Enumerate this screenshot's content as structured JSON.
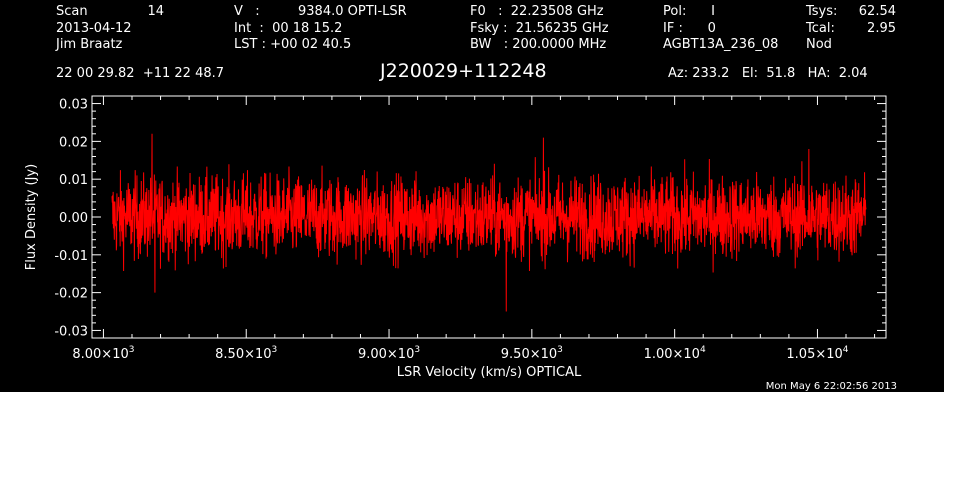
{
  "header": {
    "col1": [
      "Scan",
      "2013-04-12",
      "Jim Braatz"
    ],
    "scan_number": "14",
    "col2": [
      "V   :",
      "Int  :  00 18 15.2",
      "LST : +00 02 40.5"
    ],
    "velocity_value": "9384.0 OPTI-LSR",
    "col3": [
      "F0   :  22.23508 GHz",
      "Fsky :  21.56235 GHz",
      "BW   : 200.0000 MHz"
    ],
    "col4": [
      "Pol:      I",
      "IF :      0",
      "AGBT13A_236_08"
    ],
    "col5_labels": [
      "Tsys:",
      "Tcal:",
      "Nod"
    ],
    "col5_values": [
      "62.54",
      "2.95",
      ""
    ],
    "coords": "22 00 29.82  +11 22 48.7",
    "source": "J220029+112248",
    "azelha": "Az: 233.2   El:  51.8   HA:  2.04",
    "timestamp": "Mon May  6 22:02:56 2013"
  },
  "colors": {
    "background": "#000000",
    "foreground": "#ffffff",
    "trace": "#ff0000"
  },
  "chart_data": {
    "type": "line",
    "title": "J220029+112248",
    "xlabel": "LSR Velocity (km/s) OPTICAL",
    "ylabel": "Flux Density (Jy)",
    "xlim": [
      7960,
      10740
    ],
    "ylim": [
      -0.032,
      0.032
    ],
    "x_ticks": [
      8000,
      8500,
      9000,
      9500,
      10000,
      10500
    ],
    "x_tick_labels": [
      {
        "mantissa": "8.00×10",
        "exp": "3"
      },
      {
        "mantissa": "8.50×10",
        "exp": "3"
      },
      {
        "mantissa": "9.00×10",
        "exp": "3"
      },
      {
        "mantissa": "9.50×10",
        "exp": "3"
      },
      {
        "mantissa": "1.00×10",
        "exp": "4"
      },
      {
        "mantissa": "1.05×10",
        "exp": "4"
      }
    ],
    "y_ticks": [
      0.03,
      0.02,
      0.01,
      0.0,
      -0.01,
      -0.02,
      -0.03
    ],
    "y_tick_labels": [
      "0.03",
      "0.02",
      "0.01",
      "0.00",
      "-0.01",
      "-0.02",
      "-0.03"
    ],
    "grid": false,
    "series": [
      {
        "color": "#ff0000",
        "x_start": 8030,
        "x_end": 10670,
        "noise_rms": 0.0055,
        "peaks": [
          {
            "x": 8170,
            "y": 0.022
          },
          {
            "x": 8180,
            "y": -0.02
          },
          {
            "x": 9540,
            "y": 0.021
          },
          {
            "x": 9410,
            "y": -0.025
          },
          {
            "x": 10470,
            "y": 0.018
          }
        ]
      }
    ]
  }
}
